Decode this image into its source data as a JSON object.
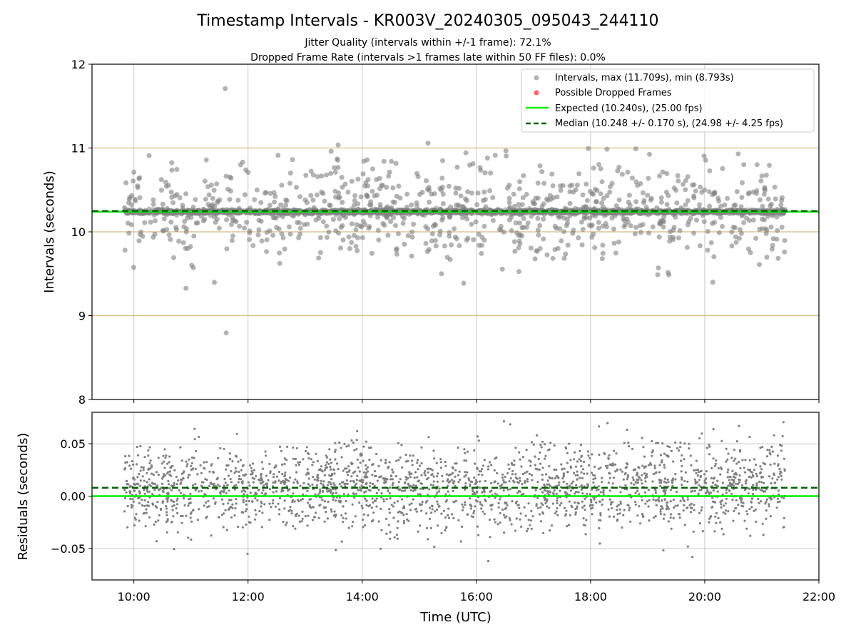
{
  "figure": {
    "title": "Timestamp Intervals - KR003V_20240305_095043_244110",
    "subtitle_1": "Jitter Quality (intervals within +/-1 frame): 72.1%",
    "subtitle_2": "Dropped Frame Rate (intervals >1 frames late within 50 FF files): 0.0%",
    "xlabel": "Time (UTC)"
  },
  "colors": {
    "intervals": "#808080",
    "dropped": "#ff4040",
    "expected": "#00ee00",
    "median": "#006400",
    "hband": "#d9b97a",
    "grid": "#c8c8c8"
  },
  "chart_data": [
    {
      "type": "scatter",
      "ylabel": "Intervals (seconds)",
      "xlim": [
        "09:16",
        "22:00"
      ],
      "ylim": [
        8,
        12
      ],
      "x_ticks": [
        "10:00",
        "12:00",
        "14:00",
        "16:00",
        "18:00",
        "20:00",
        "22:00"
      ],
      "y_ticks": [
        "8",
        "9",
        "10",
        "11",
        "12"
      ],
      "grid": true,
      "legend_position": "top-right",
      "legend": [
        "Intervals, max (11.709s), min (8.793s)",
        "Possible Dropped Frames",
        "Expected (10.240s), (25.00 fps)",
        "Median (10.248 +/- 0.170 s), (24.98 +/- 4.25 fps)"
      ],
      "time_range": [
        "09:50",
        "21:25"
      ],
      "interval_max": 11.709,
      "interval_min": 8.793,
      "expected": 10.24,
      "median": 10.248,
      "median_spread": 0.17,
      "reference_lines": [
        9,
        10,
        11
      ],
      "dropped_frames": []
    },
    {
      "type": "scatter",
      "ylabel": "Residuals (seconds)",
      "xlim": [
        "09:16",
        "22:00"
      ],
      "ylim": [
        -0.08,
        0.08
      ],
      "y_ticks": [
        "0.05",
        "0.00",
        "−0.05"
      ],
      "grid": true,
      "expected_residual": 0,
      "median_residual": 0.008
    }
  ]
}
